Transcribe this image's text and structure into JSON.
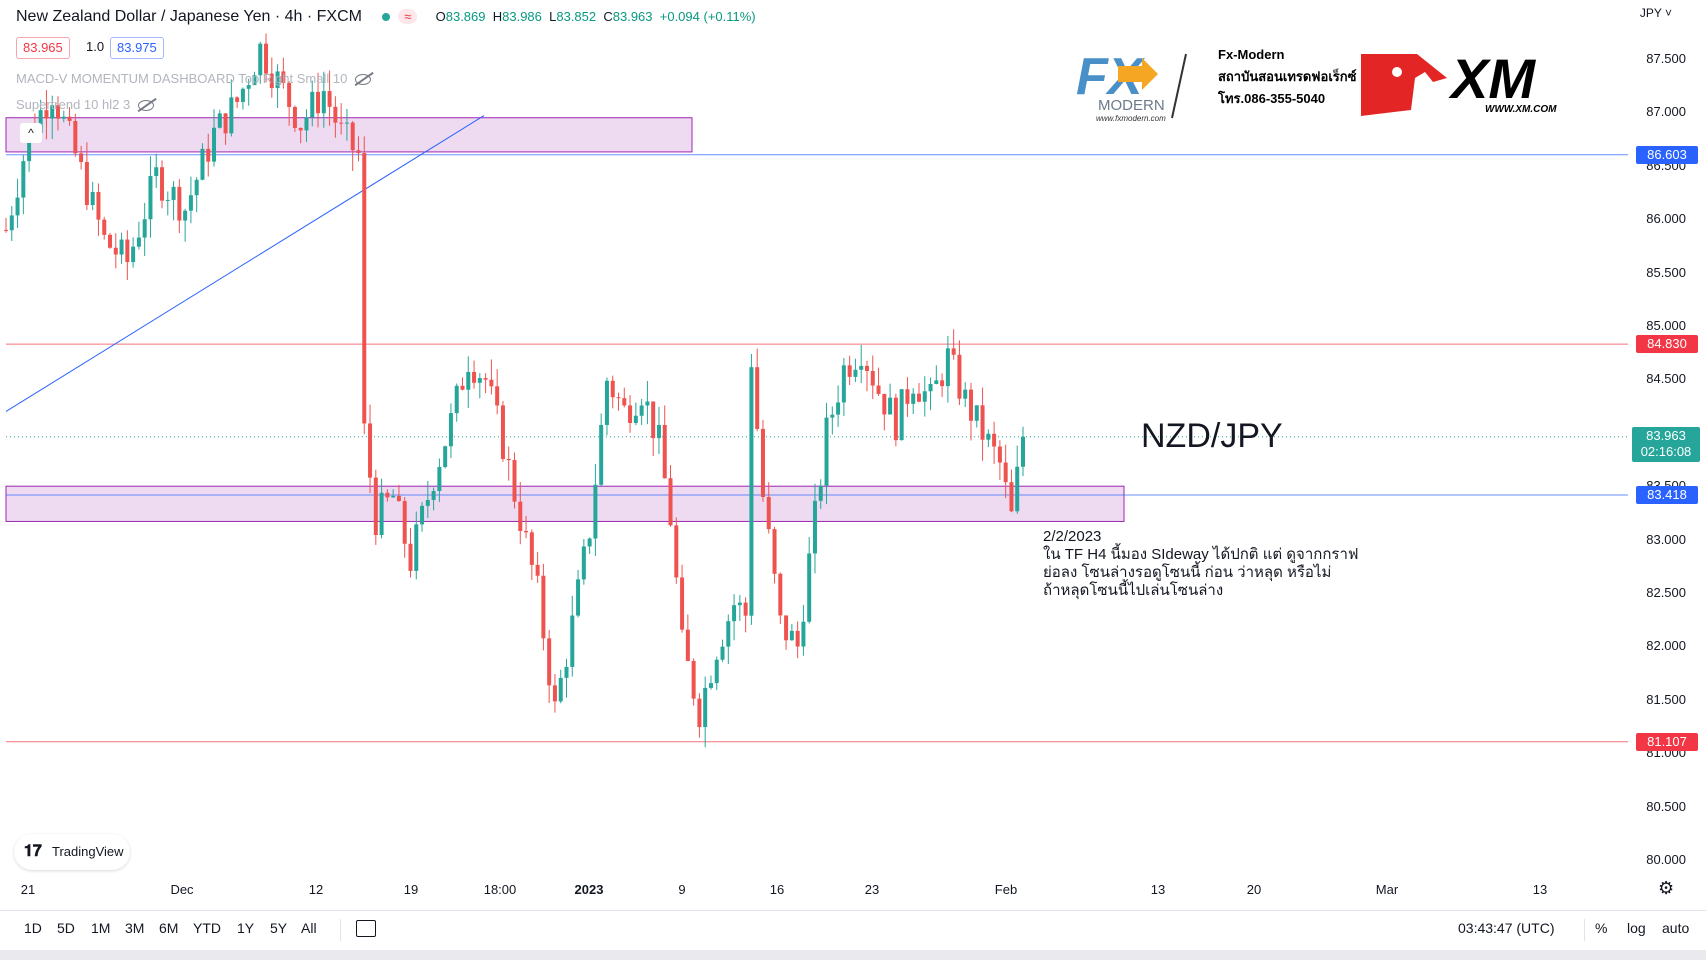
{
  "header": {
    "title": "New Zealand Dollar / Japanese Yen · 4h · FXCM",
    "wave_badge": "≈",
    "ohlc": {
      "o_key": "O",
      "o": "83.869",
      "h_key": "H",
      "h": "83.986",
      "l_key": "L",
      "l": "83.852",
      "c_key": "C",
      "c": "83.963",
      "change": "+0.094 (+0.11%)"
    },
    "bid": "83.965",
    "qty": "1.0",
    "ask": "83.975"
  },
  "indicators": [
    {
      "label": "MACD-V MOMENTUM DASHBOARD Top Right Small 10"
    },
    {
      "label": "Supertrend 10 hl2 3"
    }
  ],
  "collapse_glyph": "^",
  "currency_label": "JPY ˅",
  "branding": {
    "fx_logo_text": "FX",
    "fx_sub": "MODERN",
    "fx_url": "www.fxmodern.com",
    "fx_line1": "Fx-Modern",
    "fx_line2": "สถาบันสอนเทรดฟอเร็กซ์",
    "fx_line3": "โทร.086-355-5040",
    "xm_text": "XM",
    "xm_url": "WWW.XM.COM"
  },
  "annotation": {
    "big_label": "NZD/JPY",
    "date": "2/2/2023",
    "line1": "ใน TF H4 นี้มอง SIdeway ได้ปกติ แต่ ดูจากกราฟ",
    "line2": "ย่อลง โซนล่างรอดูโซนนี้ ก่อน ว่าหลุด หรือไม่",
    "line3": "ถ้าหลุดโซนนี้ไปเล่นโซนล่าง"
  },
  "price_levels": [
    {
      "value": "86.603",
      "color": "#2962ff",
      "price": 86.603
    },
    {
      "value": "84.830",
      "color": "#f23645",
      "price": 84.83
    },
    {
      "value": "83.418",
      "color": "#2962ff",
      "price": 83.418
    },
    {
      "value": "81.107",
      "color": "#f23645",
      "price": 81.107
    }
  ],
  "current_price": {
    "value": "83.963",
    "countdown": "02:16:08",
    "price": 83.963
  },
  "tradingview_label": "TradingView",
  "bottom": {
    "ranges": [
      "1D",
      "5D",
      "1M",
      "3M",
      "6M",
      "YTD",
      "1Y",
      "5Y",
      "All"
    ],
    "time": "03:43:47 (UTC)",
    "pct": "%",
    "log": "log",
    "auto": "auto"
  },
  "chart_data": {
    "type": "candlestick",
    "title": "New Zealand Dollar / Japanese Yen · 4h · FXCM",
    "ylim": [
      79.8,
      87.75
    ],
    "y_ticks": [
      "80.000",
      "80.500",
      "81.000",
      "81.500",
      "82.000",
      "82.500",
      "83.000",
      "83.500",
      "84.000",
      "84.500",
      "85.000",
      "85.500",
      "86.000",
      "86.500",
      "87.000",
      "87.500"
    ],
    "x_ticks": [
      {
        "label": "21",
        "bold": false
      },
      {
        "label": "Dec",
        "bold": false
      },
      {
        "label": "12",
        "bold": false
      },
      {
        "label": "19",
        "bold": false
      },
      {
        "label": "18:00",
        "bold": false
      },
      {
        "label": "2023",
        "bold": true
      },
      {
        "label": "9",
        "bold": false
      },
      {
        "label": "16",
        "bold": false
      },
      {
        "label": "23",
        "bold": false
      },
      {
        "label": "Feb",
        "bold": false
      },
      {
        "label": "13",
        "bold": false
      },
      {
        "label": "20",
        "bold": false
      },
      {
        "label": "Mar",
        "bold": false
      },
      {
        "label": "13",
        "bold": false
      }
    ],
    "zones": [
      {
        "name": "upper-zone",
        "top": 86.95,
        "bottom": 86.63,
        "color": "#9c27b0"
      },
      {
        "name": "lower-zone",
        "top": 83.5,
        "bottom": 83.17,
        "color": "#9c27b0"
      }
    ],
    "trendline": {
      "from_price": 84.2,
      "to_price": 86.97
    },
    "path": [
      [
        0,
        85.9
      ],
      [
        4,
        86.8
      ],
      [
        8,
        87.2
      ],
      [
        12,
        86.6
      ],
      [
        17,
        85.8
      ],
      [
        21,
        85.6
      ],
      [
        26,
        86.4
      ],
      [
        31,
        86.1
      ],
      [
        36,
        86.8
      ],
      [
        40,
        87.1
      ],
      [
        44,
        87.6
      ],
      [
        47,
        87.3
      ],
      [
        51,
        86.9
      ],
      [
        55,
        87.2
      ],
      [
        58,
        86.8
      ],
      [
        61,
        86.6
      ],
      [
        62,
        84.0
      ],
      [
        64,
        83.2
      ],
      [
        67,
        83.4
      ],
      [
        70,
        82.8
      ],
      [
        74,
        83.6
      ],
      [
        77,
        84.1
      ],
      [
        80,
        84.7
      ],
      [
        83,
        84.5
      ],
      [
        86,
        83.9
      ],
      [
        89,
        83.2
      ],
      [
        92,
        82.5
      ],
      [
        95,
        81.4
      ],
      [
        98,
        82.2
      ],
      [
        101,
        83.1
      ],
      [
        104,
        84.5
      ],
      [
        107,
        84.2
      ],
      [
        110,
        84.4
      ],
      [
        113,
        83.9
      ],
      [
        115,
        83.2
      ],
      [
        117,
        82.0
      ],
      [
        120,
        81.4
      ],
      [
        123,
        82.0
      ],
      [
        126,
        82.4
      ],
      [
        128,
        82.3
      ],
      [
        129,
        84.7
      ],
      [
        131,
        83.4
      ],
      [
        134,
        82.2
      ],
      [
        137,
        82.0
      ],
      [
        140,
        83.2
      ],
      [
        142,
        84.0
      ],
      [
        145,
        84.6
      ],
      [
        148,
        84.8
      ],
      [
        151,
        84.4
      ],
      [
        154,
        84.1
      ],
      [
        157,
        84.5
      ],
      [
        160,
        84.3
      ],
      [
        163,
        84.7
      ],
      [
        166,
        84.3
      ],
      [
        169,
        84.0
      ],
      [
        172,
        83.7
      ],
      [
        174,
        83.2
      ],
      [
        176,
        83.963
      ]
    ]
  }
}
